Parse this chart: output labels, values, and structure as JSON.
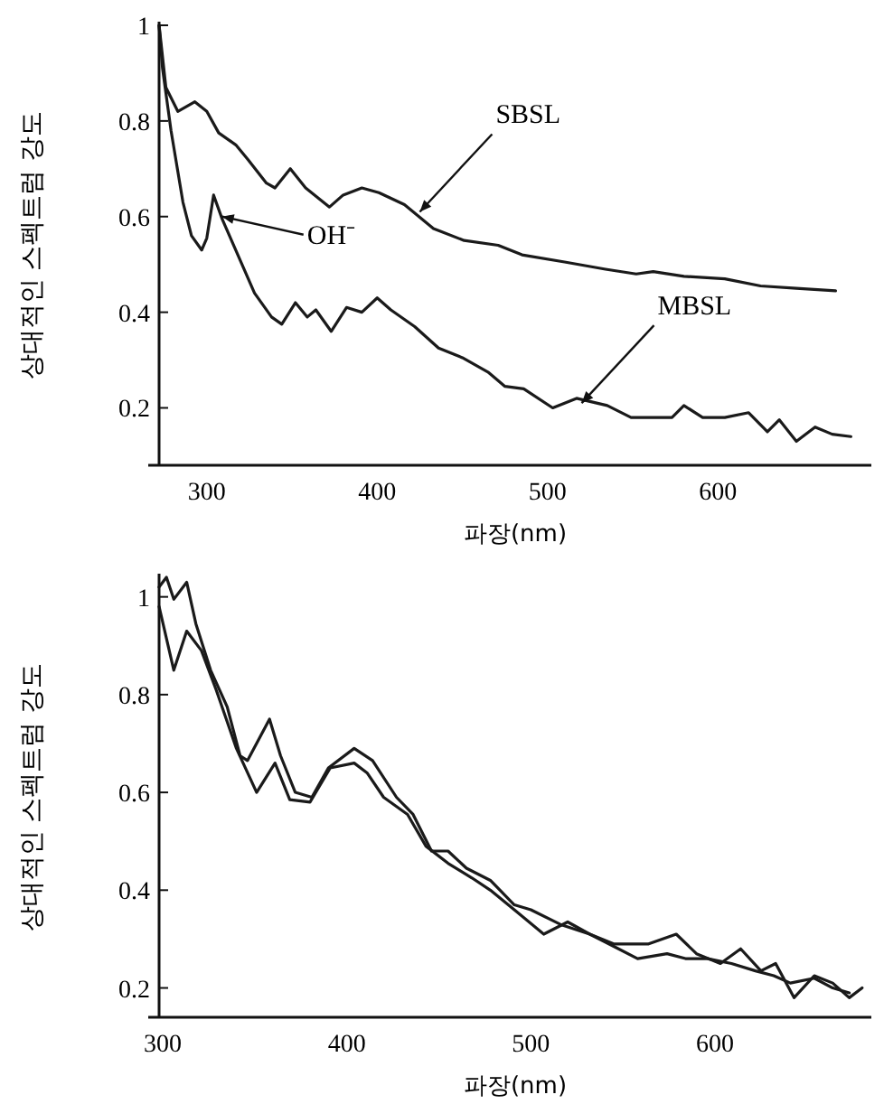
{
  "chart_data": [
    {
      "type": "line",
      "xlabel": "파장(nm)",
      "ylabel": "상대적인 스펙트럼 강도",
      "xlim": [
        272,
        690
      ],
      "ylim": [
        0.08,
        1.0
      ],
      "xticks": [
        300,
        400,
        500,
        600
      ],
      "yticks": [
        0.2,
        0.4,
        0.6,
        0.8,
        1
      ],
      "marker": "none",
      "line_style": "solid",
      "grid": false,
      "series": [
        {
          "color": "#1a1a1a",
          "x": [
            272,
            276,
            283,
            293,
            300,
            307,
            317,
            324,
            335,
            340,
            349,
            358,
            372,
            380,
            391,
            401,
            416,
            433,
            451,
            471,
            485,
            510,
            534,
            552,
            562,
            580,
            604,
            625,
            646,
            669
          ],
          "values": [
            1.0,
            0.87,
            0.82,
            0.84,
            0.82,
            0.775,
            0.75,
            0.72,
            0.67,
            0.66,
            0.7,
            0.66,
            0.62,
            0.645,
            0.66,
            0.65,
            0.625,
            0.575,
            0.55,
            0.54,
            0.52,
            0.505,
            0.49,
            0.48,
            0.485,
            0.475,
            0.47,
            0.455,
            0.45,
            0.445
          ]
        },
        {
          "color": "#1a1a1a",
          "x": [
            272,
            274,
            279,
            286,
            291,
            297,
            300,
            304,
            309,
            317,
            328,
            338,
            344,
            352,
            359,
            364,
            373,
            382,
            391,
            400,
            408,
            422,
            436,
            450,
            465,
            475,
            486,
            503,
            517,
            535,
            549,
            563,
            573,
            580,
            591,
            604,
            618,
            629,
            636,
            646,
            657,
            667,
            678
          ],
          "values": [
            1.0,
            0.91,
            0.78,
            0.63,
            0.56,
            0.53,
            0.555,
            0.645,
            0.595,
            0.53,
            0.44,
            0.39,
            0.375,
            0.42,
            0.39,
            0.405,
            0.36,
            0.41,
            0.4,
            0.43,
            0.405,
            0.37,
            0.325,
            0.305,
            0.275,
            0.245,
            0.24,
            0.2,
            0.22,
            0.205,
            0.18,
            0.18,
            0.18,
            0.205,
            0.18,
            0.18,
            0.19,
            0.15,
            0.175,
            0.13,
            0.16,
            0.145,
            0.14
          ]
        }
      ],
      "annotations": [
        {
          "text": "SBSL",
          "x": 425,
          "y": 0.61
        },
        {
          "text": "OH⁻",
          "x": 309,
          "y": 0.6
        },
        {
          "text": "MBSL",
          "x": 520,
          "y": 0.21
        }
      ]
    },
    {
      "type": "line",
      "xlabel": "파장(nm)",
      "ylabel": "상대적인 스펙트럼 강도",
      "xlim": [
        298,
        685
      ],
      "ylim": [
        0.14,
        1.04
      ],
      "xticks": [
        300,
        400,
        500,
        600
      ],
      "yticks": [
        0.2,
        0.4,
        0.6,
        0.8,
        1
      ],
      "marker": "none",
      "line_style": "solid",
      "grid": false,
      "series": [
        {
          "color": "#1a1a1a",
          "x": [
            298,
            306,
            313,
            321,
            329,
            340,
            351,
            361,
            369,
            380,
            391,
            404,
            411,
            420,
            433,
            443,
            455,
            468,
            478,
            491,
            507,
            520,
            532,
            545,
            558,
            574,
            584,
            596,
            609,
            622,
            632,
            641,
            654,
            664,
            673
          ],
          "values": [
            0.98,
            0.85,
            0.93,
            0.89,
            0.81,
            0.69,
            0.6,
            0.66,
            0.585,
            0.58,
            0.65,
            0.66,
            0.64,
            0.59,
            0.555,
            0.49,
            0.455,
            0.425,
            0.4,
            0.36,
            0.31,
            0.335,
            0.31,
            0.285,
            0.26,
            0.27,
            0.26,
            0.26,
            0.25,
            0.235,
            0.225,
            0.21,
            0.22,
            0.2,
            0.19
          ]
        },
        {
          "color": "#1a1a1a",
          "x": [
            298,
            302,
            306,
            313,
            318,
            326,
            335,
            342,
            346,
            358,
            364,
            372,
            381,
            390,
            404,
            414,
            427,
            436,
            446,
            455,
            465,
            478,
            491,
            500,
            516,
            532,
            545,
            564,
            579,
            590,
            603,
            614,
            625,
            633,
            643,
            654,
            664,
            673,
            680
          ],
          "values": [
            1.02,
            1.04,
            0.995,
            1.03,
            0.945,
            0.85,
            0.775,
            0.675,
            0.665,
            0.75,
            0.675,
            0.6,
            0.59,
            0.65,
            0.69,
            0.665,
            0.59,
            0.555,
            0.48,
            0.48,
            0.445,
            0.42,
            0.37,
            0.36,
            0.33,
            0.31,
            0.29,
            0.29,
            0.31,
            0.27,
            0.25,
            0.28,
            0.235,
            0.25,
            0.18,
            0.225,
            0.21,
            0.18,
            0.2
          ]
        }
      ]
    }
  ]
}
